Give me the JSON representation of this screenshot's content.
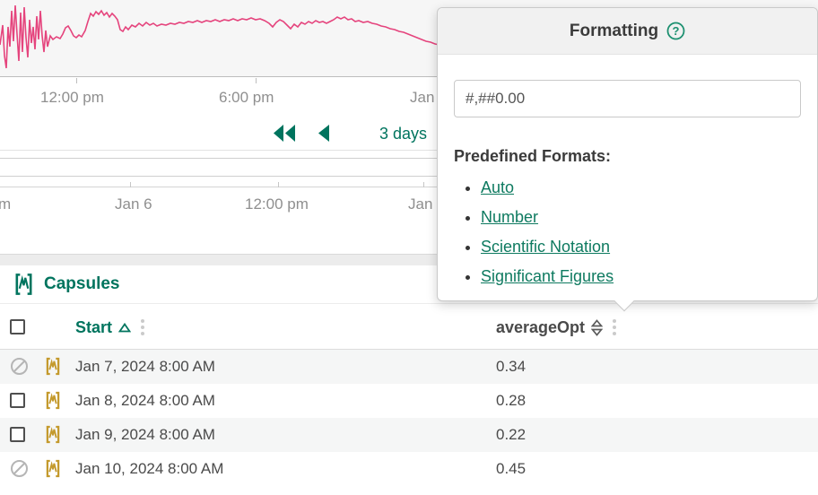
{
  "chart": {
    "x_axis_labels": [
      "12:00 pm",
      "6:00 pm",
      "Jan"
    ],
    "line_color": "#e5447d",
    "line_points": [
      [
        0,
        50
      ],
      [
        3,
        28
      ],
      [
        5,
        62
      ],
      [
        7,
        76
      ],
      [
        9,
        30
      ],
      [
        11,
        52
      ],
      [
        13,
        12
      ],
      [
        15,
        46
      ],
      [
        17,
        6
      ],
      [
        19,
        38
      ],
      [
        21,
        68
      ],
      [
        23,
        14
      ],
      [
        25,
        58
      ],
      [
        27,
        8
      ],
      [
        29,
        42
      ],
      [
        31,
        64
      ],
      [
        33,
        22
      ],
      [
        35,
        48
      ],
      [
        37,
        30
      ],
      [
        39,
        55
      ],
      [
        41,
        18
      ],
      [
        43,
        44
      ],
      [
        45,
        12
      ],
      [
        47,
        40
      ],
      [
        49,
        58
      ],
      [
        51,
        34
      ],
      [
        53,
        52
      ],
      [
        56,
        40
      ],
      [
        59,
        44
      ],
      [
        63,
        41
      ],
      [
        67,
        43
      ],
      [
        70,
        38
      ],
      [
        73,
        31
      ],
      [
        76,
        29
      ],
      [
        79,
        34
      ],
      [
        82,
        40
      ],
      [
        85,
        42
      ],
      [
        88,
        39
      ],
      [
        91,
        41
      ],
      [
        95,
        34
      ],
      [
        98,
        24
      ],
      [
        101,
        15
      ],
      [
        104,
        18
      ],
      [
        107,
        13
      ],
      [
        110,
        16
      ],
      [
        113,
        12
      ],
      [
        116,
        17
      ],
      [
        119,
        14
      ],
      [
        122,
        19
      ],
      [
        125,
        15
      ],
      [
        128,
        18
      ],
      [
        131,
        22
      ],
      [
        134,
        33
      ],
      [
        137,
        35
      ],
      [
        140,
        30
      ],
      [
        143,
        33
      ],
      [
        147,
        28
      ],
      [
        151,
        30
      ],
      [
        155,
        26
      ],
      [
        159,
        29
      ],
      [
        163,
        25
      ],
      [
        167,
        28
      ],
      [
        171,
        26
      ],
      [
        175,
        29
      ],
      [
        180,
        27
      ],
      [
        185,
        28
      ],
      [
        190,
        26
      ],
      [
        195,
        27
      ],
      [
        200,
        25
      ],
      [
        205,
        26
      ],
      [
        210,
        24
      ],
      [
        215,
        25
      ],
      [
        220,
        23
      ],
      [
        225,
        25
      ],
      [
        230,
        23
      ],
      [
        235,
        24
      ],
      [
        240,
        22
      ],
      [
        245,
        24
      ],
      [
        250,
        22
      ],
      [
        255,
        23
      ],
      [
        260,
        21
      ],
      [
        265,
        23
      ],
      [
        270,
        21
      ],
      [
        275,
        22
      ],
      [
        280,
        20
      ],
      [
        285,
        22
      ],
      [
        290,
        21
      ],
      [
        295,
        23
      ],
      [
        300,
        26
      ],
      [
        304,
        30
      ],
      [
        308,
        25
      ],
      [
        312,
        22
      ],
      [
        316,
        24
      ],
      [
        320,
        28
      ],
      [
        324,
        32
      ],
      [
        328,
        27
      ],
      [
        332,
        30
      ],
      [
        336,
        25
      ],
      [
        340,
        27
      ],
      [
        344,
        24
      ],
      [
        348,
        26
      ],
      [
        352,
        23
      ],
      [
        356,
        25
      ],
      [
        360,
        24
      ],
      [
        364,
        26
      ],
      [
        368,
        24
      ],
      [
        372,
        22
      ],
      [
        376,
        19
      ],
      [
        380,
        21
      ],
      [
        384,
        19
      ],
      [
        388,
        22
      ],
      [
        392,
        21
      ],
      [
        396,
        24
      ],
      [
        400,
        23
      ],
      [
        405,
        25
      ],
      [
        410,
        24
      ],
      [
        415,
        26
      ],
      [
        420,
        27
      ],
      [
        425,
        29
      ],
      [
        430,
        30
      ],
      [
        435,
        32
      ],
      [
        440,
        33
      ],
      [
        445,
        35
      ],
      [
        450,
        36
      ],
      [
        455,
        38
      ],
      [
        460,
        40
      ],
      [
        465,
        42
      ],
      [
        470,
        44
      ],
      [
        475,
        46
      ],
      [
        480,
        47
      ],
      [
        485,
        49
      ],
      [
        490,
        50
      ]
    ]
  },
  "navigation": {
    "range_label": "3 days"
  },
  "timebar": {
    "labels": [
      "m",
      "Jan 6",
      "12:00 pm",
      "Jan"
    ]
  },
  "formatting_popup": {
    "title": "Formatting",
    "format_input_value": "#,##0.00",
    "predefined_heading": "Predefined Formats:",
    "links": [
      "Auto",
      "Number",
      "Scientific Notation",
      "Significant Figures"
    ]
  },
  "capsules": {
    "title": "Capsules",
    "columns": {
      "start": "Start",
      "value": "averageOpt"
    },
    "rows": [
      {
        "start": "Jan 7, 2024 8:00 AM",
        "value": "0.34",
        "selectable": false
      },
      {
        "start": "Jan 8, 2024 8:00 AM",
        "value": "0.28",
        "selectable": true
      },
      {
        "start": "Jan 9, 2024 8:00 AM",
        "value": "0.22",
        "selectable": true
      },
      {
        "start": "Jan 10, 2024 8:00 AM",
        "value": "0.45",
        "selectable": false
      }
    ]
  },
  "icons": {
    "help_glyph": "?"
  },
  "colors": {
    "accent_teal": "#00745e",
    "link_teal": "#0e7a60",
    "trend_pink": "#e5447d",
    "capsule_gold": "#c49a2d",
    "axis_gray": "#8f8f8f",
    "alt_row_bg": "#f5f6f6"
  }
}
